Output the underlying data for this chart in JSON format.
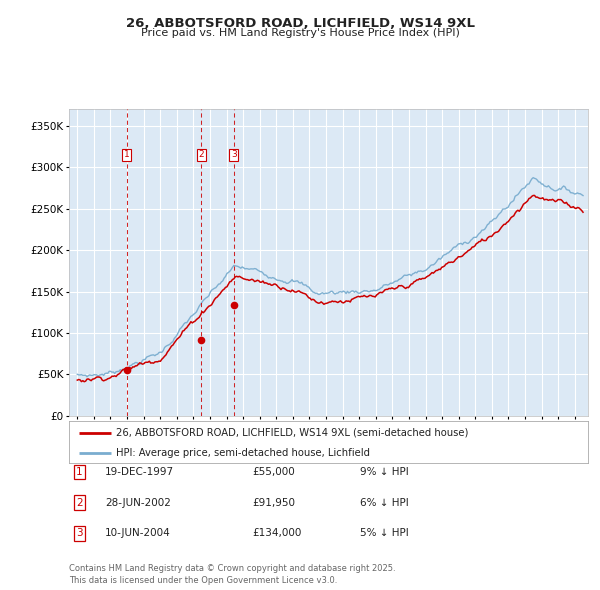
{
  "title": "26, ABBOTSFORD ROAD, LICHFIELD, WS14 9XL",
  "subtitle": "Price paid vs. HM Land Registry's House Price Index (HPI)",
  "legend_property": "26, ABBOTSFORD ROAD, LICHFIELD, WS14 9XL (semi-detached house)",
  "legend_hpi": "HPI: Average price, semi-detached house, Lichfield",
  "footnote": "Contains HM Land Registry data © Crown copyright and database right 2025.\nThis data is licensed under the Open Government Licence v3.0.",
  "purchases": [
    {
      "num": 1,
      "date": "19-DEC-1997",
      "date_x": 1997.97,
      "price": 55000,
      "label": "9% ↓ HPI"
    },
    {
      "num": 2,
      "date": "28-JUN-2002",
      "date_x": 2002.49,
      "price": 91950,
      "label": "6% ↓ HPI"
    },
    {
      "num": 3,
      "date": "10-JUN-2004",
      "date_x": 2004.44,
      "price": 134000,
      "label": "5% ↓ HPI"
    }
  ],
  "red_color": "#cc0000",
  "blue_color": "#7aadcf",
  "bg_color": "#dce9f5",
  "grid_color": "#ffffff",
  "ylim": [
    0,
    370000
  ],
  "yticks": [
    0,
    50000,
    100000,
    150000,
    200000,
    250000,
    300000,
    350000
  ],
  "xlim_start": 1994.5,
  "xlim_end": 2025.8
}
